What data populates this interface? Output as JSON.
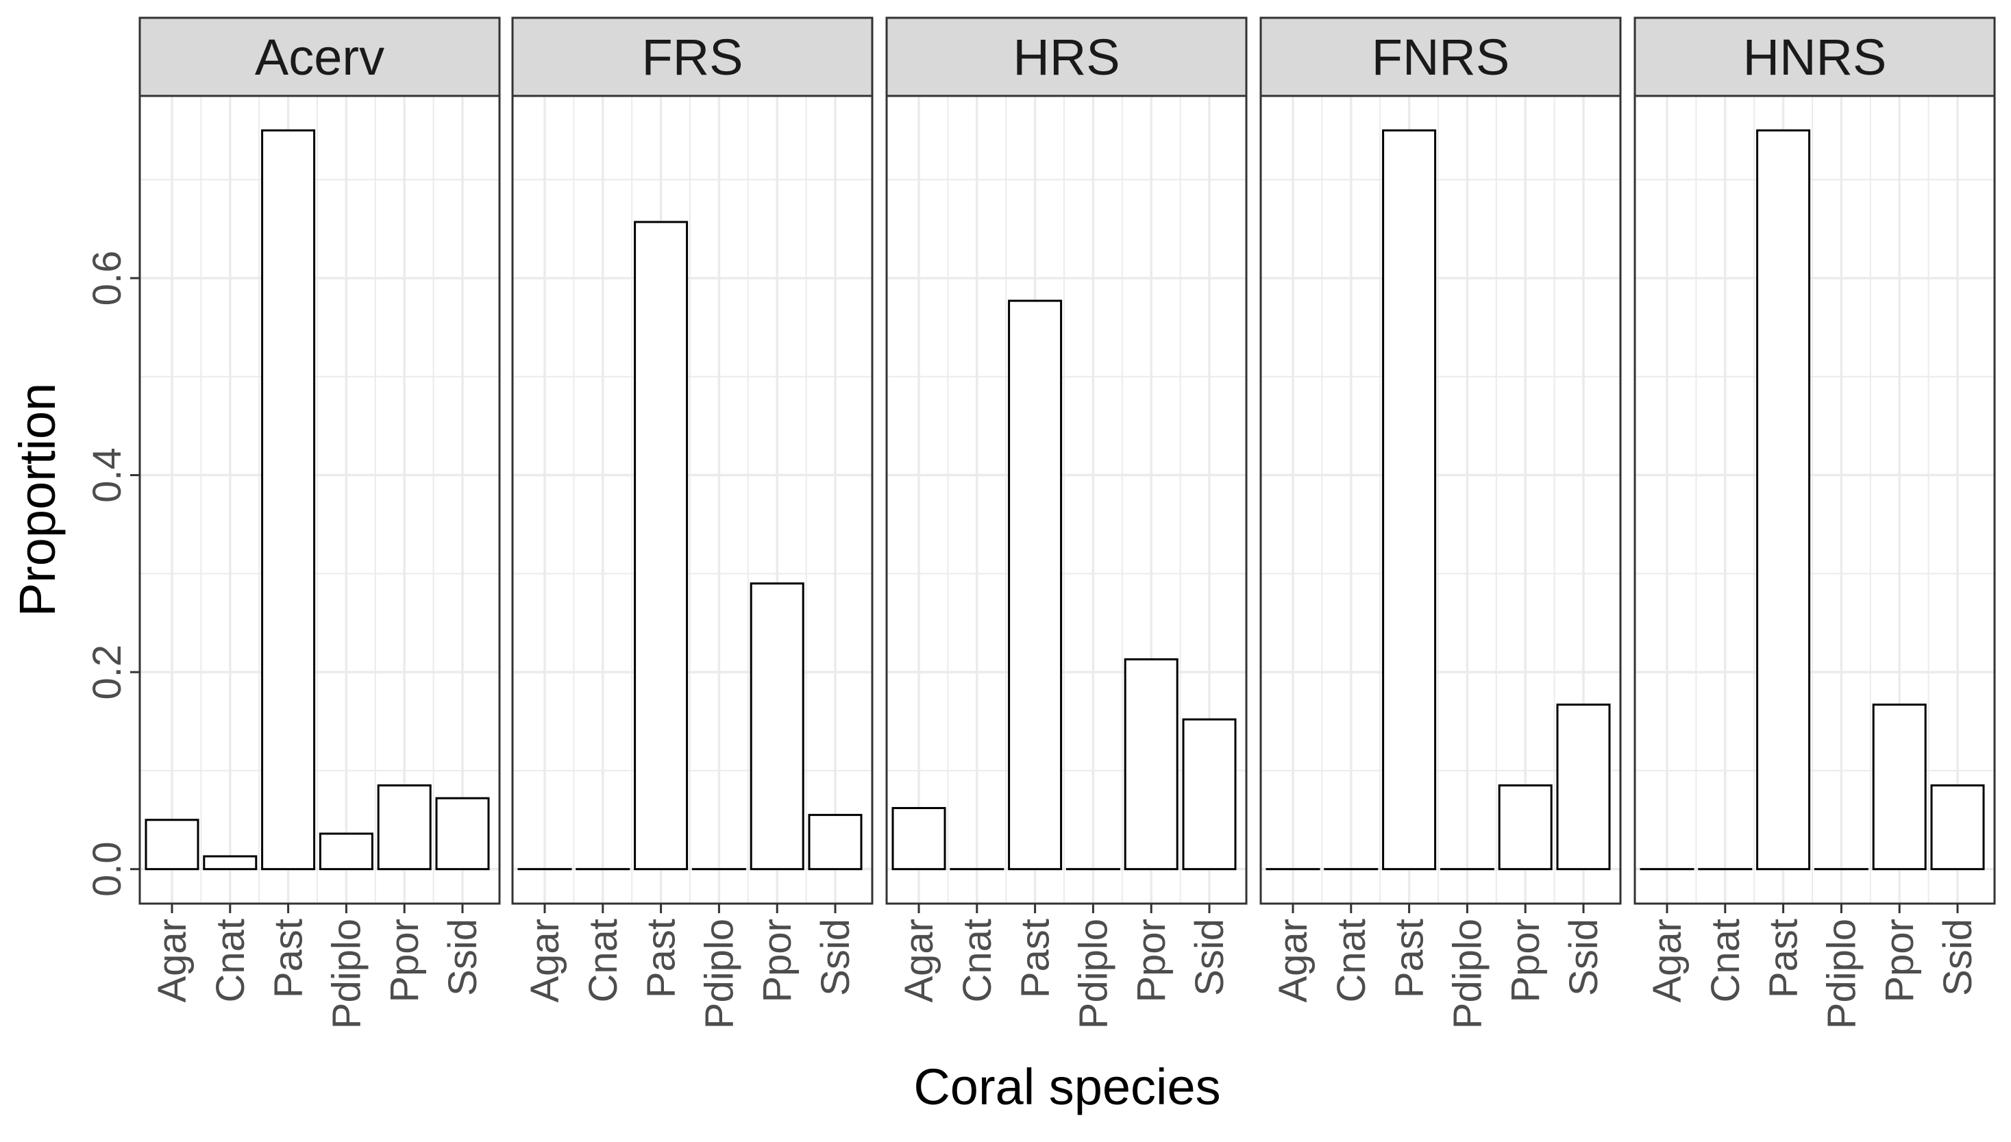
{
  "chart_data": {
    "type": "bar",
    "layout": "facet",
    "categories": [
      "Agar",
      "Cnat",
      "Past",
      "Pdiplo",
      "Ppor",
      "Ssid"
    ],
    "xlabel": "Coral species",
    "ylabel": "Proportion",
    "ylim": [
      -0.035,
      0.785
    ],
    "yticks": [
      {
        "value": 0.0,
        "label": "0.0"
      },
      {
        "value": 0.2,
        "label": "0.2"
      },
      {
        "value": 0.4,
        "label": "0.4"
      },
      {
        "value": 0.6,
        "label": "0.6"
      }
    ],
    "grid": true,
    "bar_fill": "#ffffff",
    "bar_stroke": "#000000",
    "strip_fill": "#d9d9d9",
    "grid_color": "#ebebeb",
    "tick_label_color": "#4d4d4d",
    "panels": [
      {
        "title": "Acerv",
        "values": [
          0.05,
          0.013,
          0.75,
          0.036,
          0.085,
          0.072
        ]
      },
      {
        "title": "FRS",
        "values": [
          0.0,
          0.0,
          0.657,
          0.0,
          0.29,
          0.055
        ]
      },
      {
        "title": "HRS",
        "values": [
          0.062,
          0.0,
          0.577,
          0.0,
          0.213,
          0.152
        ]
      },
      {
        "title": "FNRS",
        "values": [
          0.0,
          0.0,
          0.75,
          0.0,
          0.085,
          0.167
        ]
      },
      {
        "title": "HNRS",
        "values": [
          0.0,
          0.0,
          0.75,
          0.0,
          0.167,
          0.085
        ]
      }
    ]
  }
}
